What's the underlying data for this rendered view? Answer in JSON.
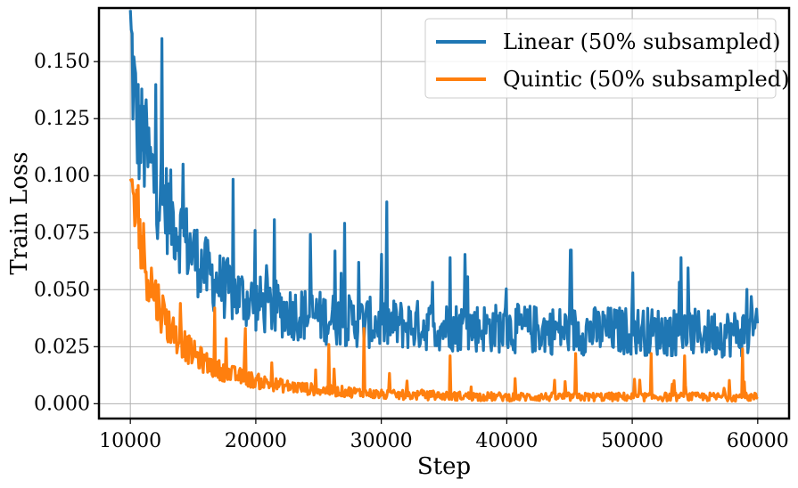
{
  "chart_data": {
    "type": "line",
    "title": "",
    "xlabel": "Step",
    "ylabel": "Train Loss",
    "xlim": [
      7500,
      62500
    ],
    "ylim": [
      -0.0065,
      0.1735
    ],
    "xticks": [
      10000,
      20000,
      30000,
      40000,
      50000,
      60000
    ],
    "yticks": [
      0.0,
      0.025,
      0.05,
      0.075,
      0.1,
      0.125,
      0.15
    ],
    "xtick_labels": [
      "10000",
      "20000",
      "30000",
      "40000",
      "50000",
      "60000"
    ],
    "ytick_labels": [
      "0.000",
      "0.025",
      "0.050",
      "0.075",
      "0.100",
      "0.125",
      "0.150"
    ],
    "grid": true,
    "legend_position": "top-right",
    "series": [
      {
        "name": "Linear (50% subsampled)",
        "color": "#1f77b4",
        "x": [
          10000,
          10500,
          11000,
          11500,
          12000,
          13000,
          14000,
          15000,
          16000,
          17000,
          18000,
          20000,
          22000,
          25000,
          28000,
          30000,
          35000,
          40000,
          45000,
          50000,
          55000,
          60000
        ],
        "y": [
          0.162,
          0.122,
          0.115,
          0.105,
          0.096,
          0.085,
          0.075,
          0.066,
          0.058,
          0.053,
          0.049,
          0.044,
          0.041,
          0.038,
          0.036,
          0.035,
          0.034,
          0.033,
          0.032,
          0.032,
          0.031,
          0.031
        ],
        "spikes": [
          {
            "x": 10050,
            "y": 0.164
          },
          {
            "x": 11200,
            "y": 0.128
          },
          {
            "x": 19950,
            "y": 0.076
          },
          {
            "x": 26300,
            "y": 0.067
          },
          {
            "x": 28200,
            "y": 0.062
          },
          {
            "x": 35500,
            "y": 0.064
          },
          {
            "x": 53900,
            "y": 0.064
          },
          {
            "x": 59500,
            "y": 0.047
          }
        ]
      },
      {
        "name": "Quintic (50% subsampled)",
        "color": "#ff7f0e",
        "x": [
          10000,
          10500,
          11000,
          11500,
          12000,
          13000,
          14000,
          15000,
          16000,
          17000,
          18000,
          20000,
          22000,
          25000,
          28000,
          30000,
          35000,
          40000,
          45000,
          50000,
          55000,
          60000
        ],
        "y": [
          0.097,
          0.082,
          0.067,
          0.056,
          0.047,
          0.035,
          0.027,
          0.022,
          0.018,
          0.015,
          0.013,
          0.01,
          0.008,
          0.006,
          0.005,
          0.004,
          0.0035,
          0.003,
          0.003,
          0.003,
          0.003,
          0.003
        ],
        "spikes": [
          {
            "x": 14000,
            "y": 0.044
          },
          {
            "x": 16700,
            "y": 0.042
          },
          {
            "x": 19200,
            "y": 0.033
          },
          {
            "x": 25800,
            "y": 0.026
          },
          {
            "x": 28600,
            "y": 0.033
          },
          {
            "x": 35500,
            "y": 0.021
          },
          {
            "x": 45500,
            "y": 0.022
          },
          {
            "x": 51500,
            "y": 0.022
          },
          {
            "x": 54200,
            "y": 0.021
          },
          {
            "x": 58800,
            "y": 0.024
          }
        ]
      }
    ]
  }
}
